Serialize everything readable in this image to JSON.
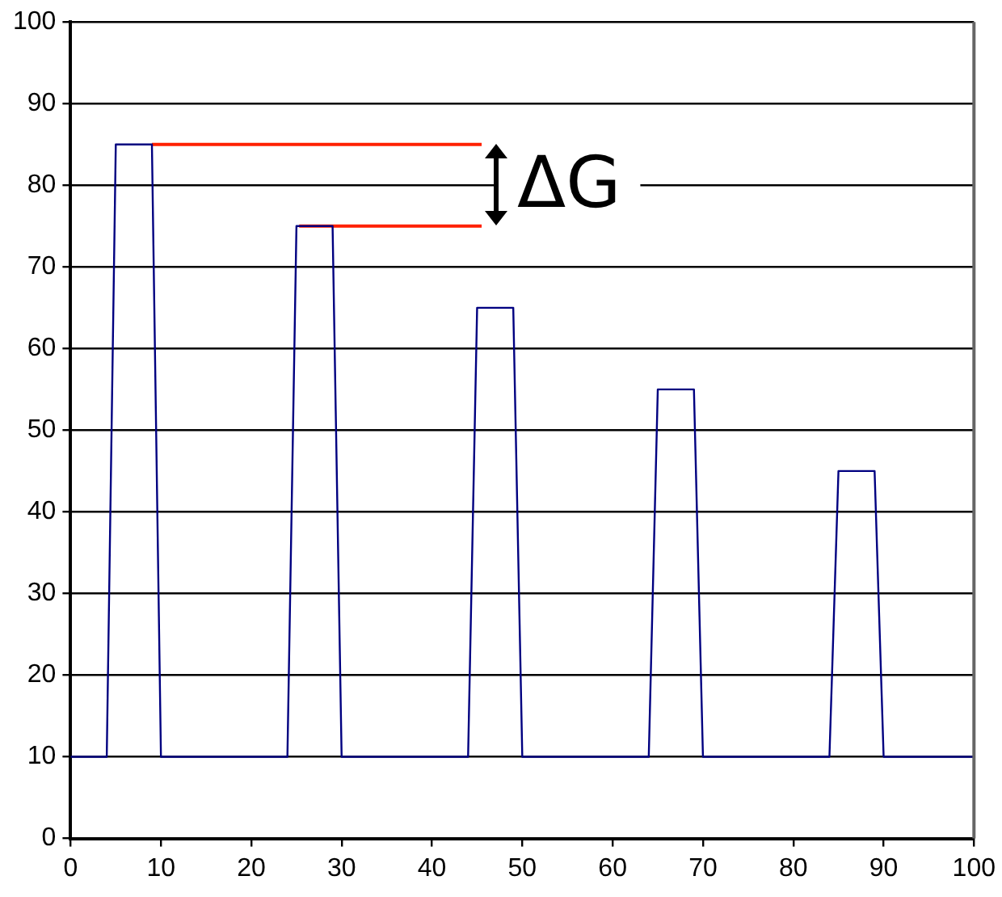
{
  "chart_data": {
    "type": "line",
    "xlim": [
      0,
      100
    ],
    "xticks": [
      0,
      10,
      20,
      30,
      40,
      50,
      60,
      70,
      80,
      90,
      100
    ],
    "ylim": [
      0,
      100
    ],
    "yticks": [
      0,
      10,
      20,
      30,
      40,
      50,
      60,
      70,
      80,
      90,
      100
    ],
    "grid": "y",
    "legend": false,
    "marker": "none",
    "line_style": "solid",
    "series": [
      {
        "color": "#000080",
        "x": [
          0,
          4,
          5,
          9,
          10,
          24,
          25,
          29,
          30,
          44,
          45,
          49,
          50,
          64,
          65,
          69,
          70,
          84,
          85,
          89,
          90,
          100
        ],
        "values": [
          10,
          10,
          85,
          85,
          10,
          10,
          75,
          75,
          10,
          10,
          65,
          65,
          10,
          10,
          55,
          55,
          10,
          10,
          45,
          45,
          10,
          10
        ]
      },
      {
        "color": "#ff2000",
        "x": [
          9,
          45.5
        ],
        "values": [
          85,
          85
        ]
      },
      {
        "color": "#ff2000",
        "x": [
          25.3,
          45.5
        ],
        "values": [
          75,
          75
        ]
      }
    ],
    "annotations": [
      "ΔG"
    ]
  }
}
